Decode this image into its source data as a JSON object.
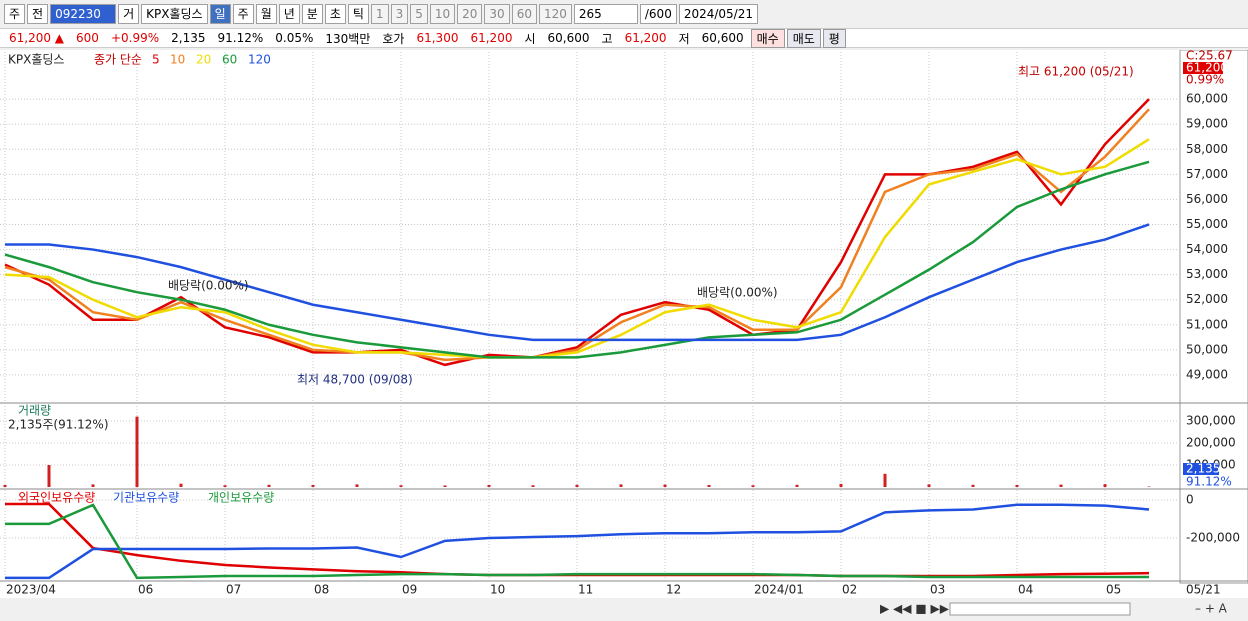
{
  "toolbar": {
    "items": [
      "주",
      "전",
      "092230",
      "거",
      "KPX홀딩스",
      "일",
      "주",
      "월",
      "년",
      "분",
      "초",
      "틱",
      "1",
      "3",
      "5",
      "10",
      "20",
      "30",
      "60",
      "120",
      "265",
      "/600",
      "2024/05/21"
    ]
  },
  "quote": {
    "items": [
      "61,200 ▲",
      "600",
      "+0.99%",
      "2,135",
      "91.12%",
      "0.05%",
      "130백만",
      "호가",
      "61,300",
      "61,200",
      "시",
      "60,600",
      "고",
      "61,200",
      "저",
      "60,600",
      "매수",
      "매도",
      "평"
    ]
  },
  "chart_data": [
    {
      "type": "line",
      "title": "KPX홀딩스",
      "subtitle": "종가 단순",
      "ylim": [
        47920,
        61880
      ],
      "yticks": [
        {
          "value": 49000,
          "label": "49,000"
        },
        {
          "value": 50000,
          "label": "50,000"
        },
        {
          "value": 51000,
          "label": "51,000"
        },
        {
          "value": 52000,
          "label": "52,000"
        },
        {
          "value": 53000,
          "label": "53,000"
        },
        {
          "value": 54000,
          "label": "54,000"
        },
        {
          "value": 55000,
          "label": "55,000"
        },
        {
          "value": 56000,
          "label": "56,000"
        },
        {
          "value": 57000,
          "label": "57,000"
        },
        {
          "value": 58000,
          "label": "58,000"
        },
        {
          "value": 59000,
          "label": "59,000"
        },
        {
          "value": 60000,
          "label": "60,000"
        }
      ],
      "grid": true,
      "series": [
        {
          "name": "5",
          "color": "#e00000",
          "values": [
            53400,
            52600,
            51200,
            51200,
            52100,
            50900,
            50500,
            49900,
            49900,
            50000,
            49400,
            49800,
            49700,
            50100,
            51400,
            51900,
            51600,
            50600,
            50800,
            53500,
            57000,
            57000,
            57300,
            57900,
            55800,
            58200,
            60000
          ]
        },
        {
          "name": "10",
          "color": "#f08020",
          "values": [
            53300,
            52800,
            51500,
            51200,
            51900,
            51200,
            50600,
            50000,
            49900,
            49900,
            49600,
            49700,
            49700,
            50000,
            51100,
            51800,
            51700,
            50800,
            50800,
            52500,
            56300,
            57000,
            57200,
            57800,
            56300,
            57700,
            59600
          ]
        },
        {
          "name": "20",
          "color": "#f0dc00",
          "values": [
            53000,
            52900,
            52000,
            51300,
            51700,
            51500,
            50800,
            50200,
            49900,
            49900,
            49800,
            49700,
            49700,
            49900,
            50600,
            51500,
            51800,
            51200,
            50900,
            51500,
            54500,
            56600,
            57100,
            57600,
            57000,
            57300,
            58400
          ]
        },
        {
          "name": "60",
          "color": "#1a9a3a",
          "values": [
            53800,
            53300,
            52700,
            52300,
            52000,
            51600,
            51000,
            50600,
            50300,
            50100,
            49900,
            49700,
            49700,
            49700,
            49900,
            50200,
            50500,
            50600,
            50700,
            51200,
            52200,
            53200,
            54300,
            55700,
            56400,
            57000,
            57500
          ]
        },
        {
          "name": "120",
          "color": "#2050e0",
          "values": [
            54200,
            54200,
            54000,
            53700,
            53300,
            52800,
            52300,
            51800,
            51500,
            51200,
            50900,
            50600,
            50400,
            50400,
            50400,
            50400,
            50400,
            50400,
            50400,
            50600,
            51300,
            52100,
            52800,
            53500,
            54000,
            54400,
            55000
          ]
        }
      ],
      "annotations": [
        "최고 61,200 (05/21)",
        "최저 48,700 (09/08)",
        "배당락(0.00%)",
        "배당락(0.00%)"
      ],
      "right_labels": [
        "C:25.67",
        "61,200",
        "0.99%"
      ]
    },
    {
      "type": "bar",
      "title": "거래량",
      "subtitle": "2,135주(91.12%)",
      "ylim": [
        0,
        372700
      ],
      "yticks": [
        {
          "value": 100000,
          "label": "100,000"
        },
        {
          "value": 200000,
          "label": "200,000"
        },
        {
          "value": 300000,
          "label": "300,000"
        }
      ],
      "grid": true,
      "series": [
        {
          "name": "거래량",
          "color": "#d02020",
          "values": [
            9000,
            100000,
            12000,
            320000,
            15000,
            8000,
            10000,
            9000,
            12000,
            8000,
            7000,
            9000,
            8000,
            10000,
            12000,
            11000,
            9000,
            8000,
            10000,
            14000,
            60000,
            12000,
            10000,
            9000,
            11000,
            13000,
            2135
          ]
        }
      ],
      "right_labels": [
        "2,135",
        "91.12%"
      ]
    },
    {
      "type": "line",
      "categories": [
        "2023/04",
        null,
        null,
        "06",
        null,
        "07",
        null,
        "08",
        null,
        "09",
        null,
        "10",
        null,
        "11",
        null,
        "12",
        null,
        "2024/01",
        null,
        "02",
        null,
        "03",
        null,
        "04",
        null,
        "05",
        null
      ],
      "x_end_label": "05/21",
      "ylim": [
        -421000,
        42000
      ],
      "yticks": [
        0,
        {
          "value": -200000,
          "label": "-200,000"
        }
      ],
      "grid": true,
      "series": [
        {
          "name": "외국인보유수량",
          "color": "#e00000",
          "values": [
            -21000,
            -21000,
            -253000,
            -290000,
            -320000,
            -342000,
            -355000,
            -365000,
            -375000,
            -380000,
            -390000,
            -395000,
            -395000,
            -395000,
            -395000,
            -395000,
            -395000,
            -395000,
            -395000,
            -400000,
            -400000,
            -400000,
            -400000,
            -395000,
            -390000,
            -388000,
            -385000
          ]
        },
        {
          "name": "기관보유수량",
          "color": "#2050e0",
          "values": [
            -410000,
            -410000,
            -258000,
            -258000,
            -258000,
            -258000,
            -255000,
            -255000,
            -250000,
            -300000,
            -215000,
            -200000,
            -195000,
            -190000,
            -180000,
            -175000,
            -175000,
            -170000,
            -170000,
            -165000,
            -65000,
            -55000,
            -50000,
            -25000,
            -25000,
            -30000,
            -50000
          ]
        },
        {
          "name": "개인보유수량",
          "color": "#1a9a3a",
          "values": [
            -126000,
            -126000,
            -26000,
            -410000,
            -405000,
            -400000,
            -400000,
            -400000,
            -395000,
            -390000,
            -390000,
            -395000,
            -395000,
            -390000,
            -390000,
            -390000,
            -390000,
            -390000,
            -395000,
            -400000,
            -400000,
            -405000,
            -405000,
            -405000,
            -405000,
            -405000,
            -405000
          ]
        }
      ]
    }
  ]
}
